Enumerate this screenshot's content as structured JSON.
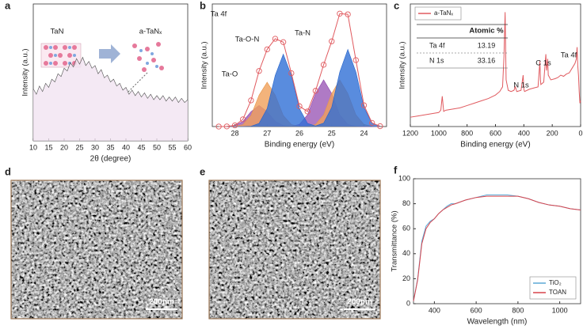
{
  "chart_data": [
    {
      "type": "line",
      "panel": "a",
      "xlabel": "2θ (degree)",
      "ylabel": "Intensity (a.u.)",
      "xlim": [
        10,
        60
      ],
      "xticks": [
        10,
        15,
        20,
        25,
        30,
        35,
        40,
        45,
        50,
        55,
        60
      ],
      "ylim": [
        0,
        100
      ],
      "annotations": [
        "TaN",
        "a-TaNₓ"
      ],
      "x": [
        10,
        11,
        12,
        13,
        14,
        15,
        16,
        17,
        18,
        19,
        20,
        21,
        22,
        23,
        24,
        25,
        26,
        27,
        28,
        29,
        30,
        31,
        32,
        33,
        34,
        35,
        36,
        37,
        38,
        39,
        40,
        41,
        42,
        43,
        44,
        45,
        46,
        47,
        48,
        49,
        50,
        51,
        52,
        53,
        54,
        55,
        56,
        57,
        58,
        59,
        60
      ],
      "series": [
        {
          "color": "#4d4d4d",
          "fill": "#f1e3f1",
          "values": [
            38,
            34,
            40,
            36,
            42,
            39,
            45,
            43,
            49,
            47,
            53,
            51,
            57,
            54,
            60,
            56,
            61,
            55,
            58,
            53,
            55,
            49,
            52,
            46,
            48,
            43,
            45,
            40,
            42,
            37,
            39,
            34,
            37,
            33,
            36,
            32,
            35,
            31,
            34,
            30,
            33,
            30,
            33,
            29,
            32,
            29,
            32,
            28,
            31,
            28,
            30
          ]
        }
      ]
    },
    {
      "type": "line",
      "panel": "b",
      "xlabel": "Binding energy (eV)",
      "ylabel": "Intensity (a.u.)",
      "xlim": [
        28.7,
        23.3
      ],
      "xticks": [
        28,
        27,
        26,
        25,
        24
      ],
      "ylim": [
        0,
        105
      ],
      "annotations": [
        "Ta 4f",
        "Ta-O-N",
        "Ta-N",
        "Ta-O"
      ],
      "x": [
        28.5,
        28.25,
        28,
        27.75,
        27.5,
        27.25,
        27,
        26.75,
        26.5,
        26.25,
        26,
        25.75,
        25.5,
        25.25,
        25,
        24.75,
        24.5,
        24.25,
        24,
        23.75,
        23.5
      ],
      "series": [
        {
          "color": "#8e44ad",
          "fill": "#9b59b6",
          "values": [
            0,
            0.1,
            0.8,
            4.5,
            12.7,
            18,
            12.7,
            4.5,
            0.8,
            0.2,
            1.8,
            10,
            28.3,
            40,
            28.3,
            10,
            1.8,
            0.2,
            0,
            0,
            0
          ]
        },
        {
          "color": "#e8964a",
          "fill": "#f0a05a",
          "values": [
            0,
            0,
            0.2,
            1.7,
            9.5,
            26.9,
            38,
            26.9,
            9.5,
            1.7,
            0.2,
            0.2,
            1.8,
            10,
            28.3,
            40,
            28.3,
            10,
            1.8,
            0.2,
            0
          ]
        },
        {
          "color": "#2563c9",
          "fill": "#2f6fd6",
          "values": [
            0,
            0,
            0,
            0,
            0.2,
            2.7,
            15.4,
            43.8,
            62,
            43.8,
            15.4,
            2.7,
            0.5,
            2.9,
            16.4,
            46.7,
            66,
            46.7,
            16.4,
            2.9,
            0.3
          ]
        },
        {
          "color": "#e05a5f",
          "marker": "circle",
          "values": [
            0,
            0.1,
            1,
            6.2,
            22.4,
            47.6,
            66.1,
            75.2,
            72.3,
            45.7,
            17.4,
            12.9,
            30.6,
            52.9,
            73,
            96.7,
            96.1,
            56.9,
            18.2,
            3.1,
            0.3
          ]
        }
      ]
    },
    {
      "type": "line",
      "panel": "c",
      "xlabel": "Binding energy (eV)",
      "ylabel": "Intensity (a.u.)",
      "xlim": [
        1200,
        0
      ],
      "xticks": [
        1200,
        1000,
        800,
        600,
        400,
        200,
        0
      ],
      "ylim": [
        0,
        105
      ],
      "legend": "upper left",
      "annotations": [
        "N 1s",
        "C 1s",
        "Ta 4f"
      ],
      "table": {
        "header": "Atomic %",
        "rows": [
          [
            "Ta 4f",
            "13.19"
          ],
          [
            "N 1s",
            "33.16"
          ]
        ]
      },
      "x": [
        1200,
        1150,
        1100,
        1050,
        1000,
        985,
        975,
        965,
        950,
        900,
        850,
        800,
        750,
        700,
        650,
        600,
        570,
        550,
        540,
        532,
        525,
        510,
        490,
        470,
        460,
        450,
        420,
        405,
        400,
        395,
        360,
        330,
        300,
        287,
        283,
        280,
        260,
        245,
        240,
        232,
        228,
        210,
        180,
        160,
        140,
        120,
        100,
        80,
        60,
        40,
        30,
        25,
        20,
        15,
        10,
        5,
        0
      ],
      "series": [
        {
          "name": "a-TaNₓ",
          "color": "#e05a5f",
          "values": [
            8,
            9,
            10,
            11,
            12,
            14,
            26,
            13,
            14,
            15,
            16,
            18,
            20,
            22,
            24,
            27,
            30,
            34,
            60,
            98,
            40,
            31,
            30,
            31,
            34,
            30,
            31,
            44,
            32,
            30,
            32,
            33,
            34,
            56,
            40,
            36,
            38,
            62,
            48,
            58,
            44,
            40,
            41,
            42,
            44,
            43,
            45,
            46,
            50,
            54,
            58,
            68,
            52,
            44,
            30,
            20,
            22
          ]
        }
      ]
    },
    {
      "type": "line",
      "panel": "f",
      "xlabel": "Wavelength (nm)",
      "ylabel": "Transmittance (%)",
      "xlim": [
        300,
        1100
      ],
      "xticks": [
        400,
        600,
        800,
        1000
      ],
      "ylim": [
        0,
        100
      ],
      "yticks": [
        0,
        20,
        40,
        60,
        80,
        100
      ],
      "legend": "lower right",
      "x": [
        300,
        320,
        340,
        360,
        380,
        400,
        420,
        440,
        460,
        480,
        500,
        550,
        600,
        650,
        700,
        750,
        800,
        850,
        900,
        950,
        1000,
        1050,
        1100
      ],
      "series": [
        {
          "name": "TiO₂",
          "color": "#5aa9d6",
          "values": [
            2,
            20,
            50,
            62,
            66,
            68,
            72,
            75,
            78,
            80,
            80,
            83,
            85,
            87,
            87,
            87,
            86,
            84,
            81,
            79,
            78,
            76,
            75
          ]
        },
        {
          "name": "TOAN",
          "color": "#d9434b",
          "values": [
            2,
            19,
            48,
            60,
            65,
            68,
            72,
            75,
            77,
            79,
            80,
            83,
            85,
            86,
            86,
            86,
            86,
            84,
            81,
            79,
            78,
            76,
            75
          ]
        }
      ]
    }
  ],
  "images": [
    {
      "panel": "d",
      "scale_bar": "200nm"
    },
    {
      "panel": "e",
      "scale_bar": "200nm"
    }
  ]
}
